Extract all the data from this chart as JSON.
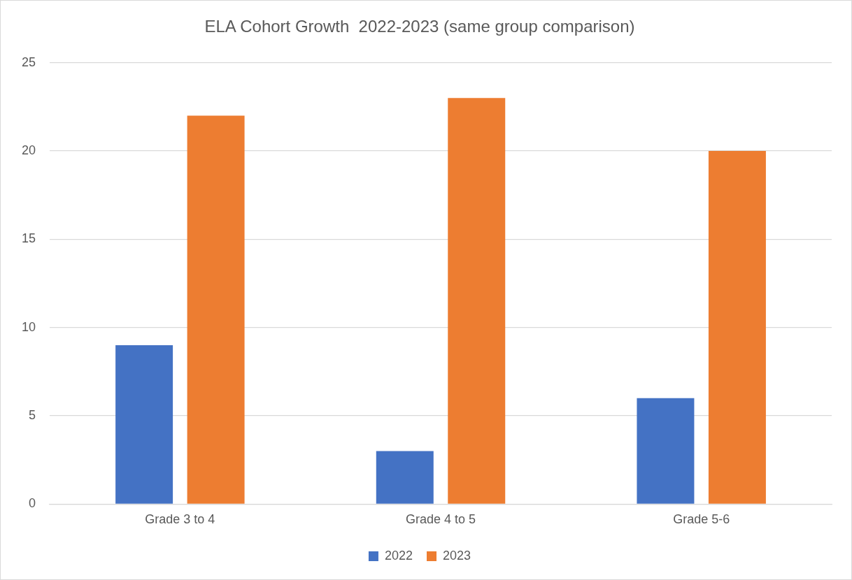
{
  "chart_data": {
    "type": "bar",
    "title": "ELA Cohort Growth  2022-2023 (same group comparison)",
    "categories": [
      "Grade 3 to 4",
      "Grade 4 to 5",
      "Grade 5-6"
    ],
    "series": [
      {
        "name": "2022",
        "color": "#4472c4",
        "values": [
          9,
          3,
          6
        ]
      },
      {
        "name": "2023",
        "color": "#ed7d31",
        "values": [
          22,
          23,
          20
        ]
      }
    ],
    "ylim": [
      0,
      25
    ],
    "yticks": [
      0,
      5,
      10,
      15,
      20,
      25
    ],
    "grid": "y",
    "legend": "bottom"
  }
}
